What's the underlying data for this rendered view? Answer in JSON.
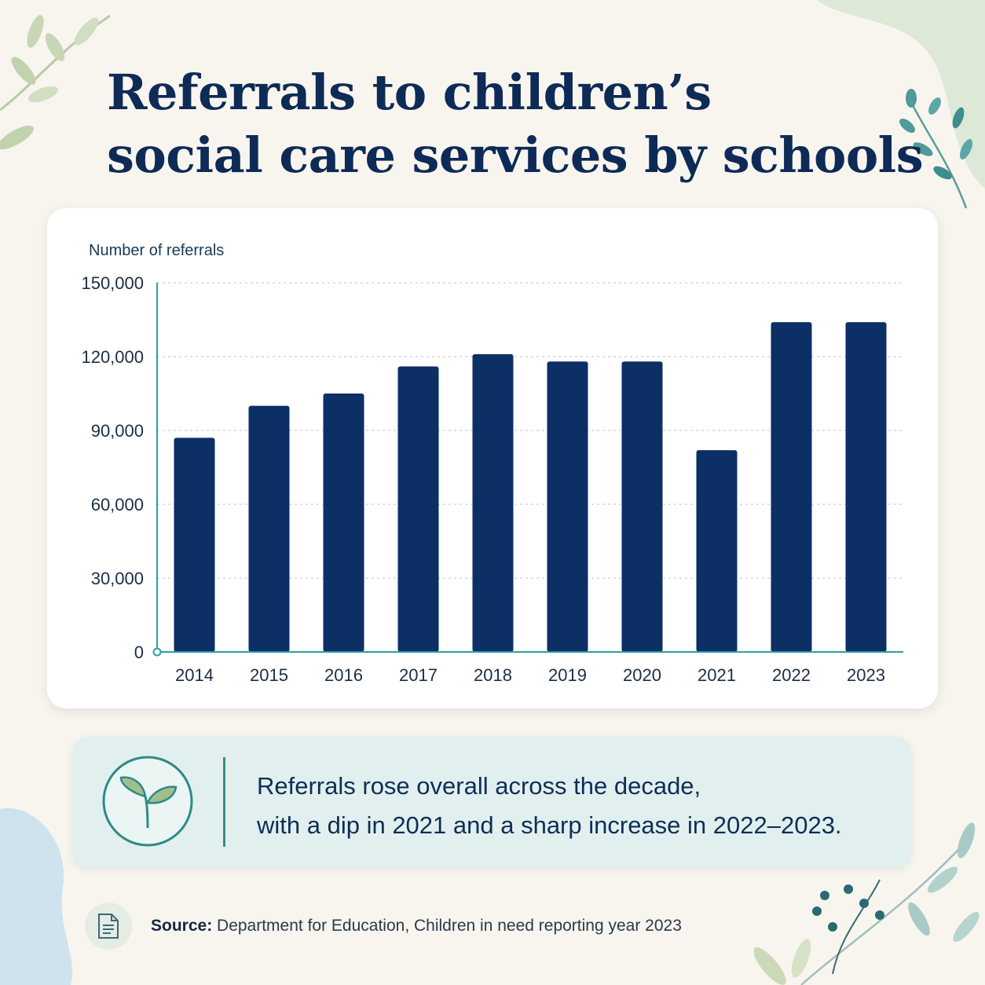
{
  "title": {
    "line1": "Referrals to children’s",
    "line2": "social care services by schools"
  },
  "chart_data": {
    "type": "bar",
    "ylabel": "Number of referrals",
    "categories": [
      "2014",
      "2015",
      "2016",
      "2017",
      "2018",
      "2019",
      "2020",
      "2021",
      "2022",
      "2023"
    ],
    "values": [
      87000,
      100000,
      105000,
      116000,
      121000,
      118000,
      118000,
      82000,
      134000,
      134000
    ],
    "ylim": [
      0,
      150000
    ],
    "yticks": [
      0,
      30000,
      60000,
      90000,
      120000,
      150000
    ],
    "ytick_labels": [
      "0",
      "30,000",
      "60,000",
      "90,000",
      "120,000",
      "150,000"
    ],
    "grid": true,
    "colors": {
      "bar": "#0c2f66",
      "axis": "#2aa1a3",
      "grid": "#c9cfd4"
    }
  },
  "insight": {
    "icon": "sprout-icon",
    "line1": "Referrals rose overall across the decade,",
    "line2": "with a dip in 2021 and a sharp increase in 2022–2023."
  },
  "source": {
    "icon": "document-icon",
    "label": "Source:",
    "text": "Department for Education, Children in need reporting year 2023"
  },
  "colors": {
    "background": "#f8f5ef",
    "title": "#0e2a56",
    "insight_bg": "#e1f0ee",
    "accent": "#3a8a87"
  }
}
